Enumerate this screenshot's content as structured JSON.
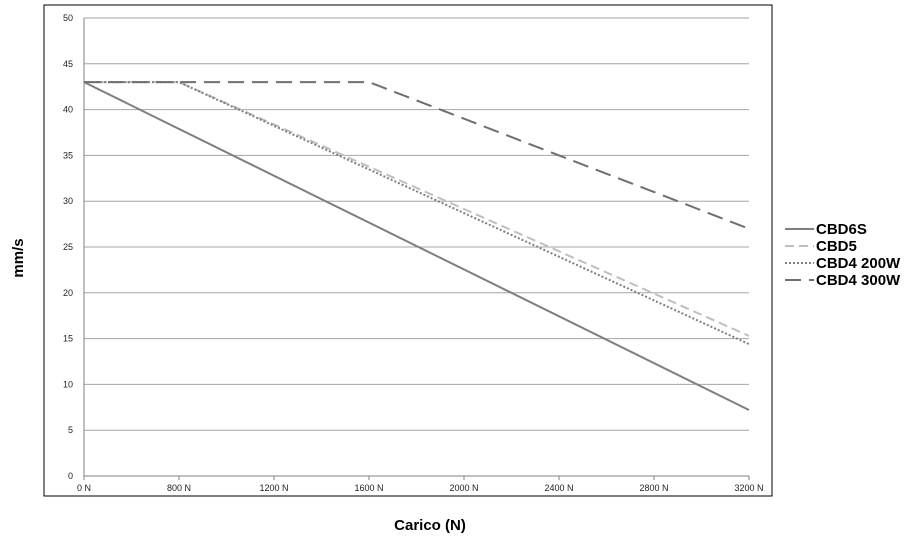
{
  "chart_data": {
    "type": "line",
    "xlabel": "Carico (N)",
    "ylabel": "mm/s",
    "x_tick_labels": [
      "0 N",
      "800 N",
      "1200 N",
      "1600 N",
      "2000 N",
      "2400 N",
      "2800 N",
      "3200 N"
    ],
    "y_tick_labels": [
      "0",
      "5",
      "10",
      "15",
      "20",
      "25",
      "30",
      "35",
      "40",
      "45",
      "50"
    ],
    "ylim": [
      0,
      50
    ],
    "grid": "horizontal",
    "legend_position": "right",
    "series": [
      {
        "name": "CBD6S",
        "color": "#7f7f7f",
        "style": "solid",
        "points": [
          [
            0,
            43
          ],
          [
            7,
            7.2
          ]
        ]
      },
      {
        "name": "CBD5",
        "color": "#bfbfbf",
        "style": "dashed",
        "points": [
          [
            0,
            43
          ],
          [
            1,
            43
          ],
          [
            7,
            15.3
          ]
        ]
      },
      {
        "name": "CBD4 200W",
        "color": "#7f7f7f",
        "style": "dotted",
        "points": [
          [
            0,
            43
          ],
          [
            1,
            43
          ],
          [
            7,
            14.4
          ]
        ]
      },
      {
        "name": "CBD4 300W",
        "color": "#6f6f6f",
        "style": "longdash",
        "points": [
          [
            0,
            43
          ],
          [
            3,
            43
          ],
          [
            7,
            27
          ]
        ]
      }
    ]
  }
}
